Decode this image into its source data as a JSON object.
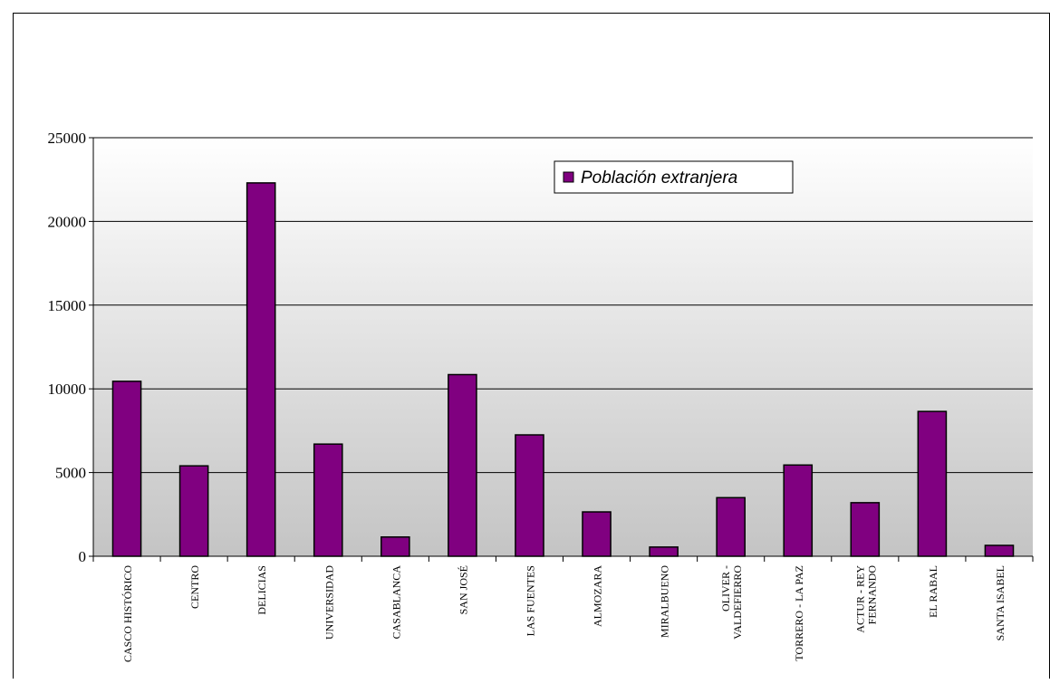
{
  "chart_data": {
    "type": "bar",
    "categories": [
      "CASCO HISTÓRICO",
      "CENTRO",
      "DELICIAS",
      "UNIVERSIDAD",
      "CASABLANCA",
      "SAN JOSÉ",
      "LAS FUENTES",
      "ALMOZARA",
      "MIRALBUENO",
      "OLIVER - VALDEFIERRO",
      "TORRERO - LA PAZ",
      "ACTUR - REY FERNANDO",
      "EL RABAL",
      "SANTA ISABEL"
    ],
    "category_lines": [
      [
        "CASCO HISTÓRICO"
      ],
      [
        "CENTRO"
      ],
      [
        "DELICIAS"
      ],
      [
        "UNIVERSIDAD"
      ],
      [
        "CASABLANCA"
      ],
      [
        "SAN JOSÉ"
      ],
      [
        "LAS FUENTES"
      ],
      [
        "ALMOZARA"
      ],
      [
        "MIRALBUENO"
      ],
      [
        "OLIVER -",
        "VALDEFIERRO"
      ],
      [
        "TORRERO - LA PAZ"
      ],
      [
        "ACTUR - REY",
        "FERNANDO"
      ],
      [
        "EL RABAL"
      ],
      [
        "SANTA ISABEL"
      ]
    ],
    "series": [
      {
        "name": "Población extranjera",
        "color": "#800080",
        "values": [
          10450,
          5400,
          22300,
          6700,
          1150,
          10850,
          7250,
          2650,
          550,
          3500,
          5450,
          3200,
          8650,
          650
        ]
      }
    ],
    "ylim": [
      0,
      25000
    ],
    "yticks": [
      0,
      5000,
      10000,
      15000,
      20000,
      25000
    ],
    "grid": true,
    "legend": "top-right"
  }
}
